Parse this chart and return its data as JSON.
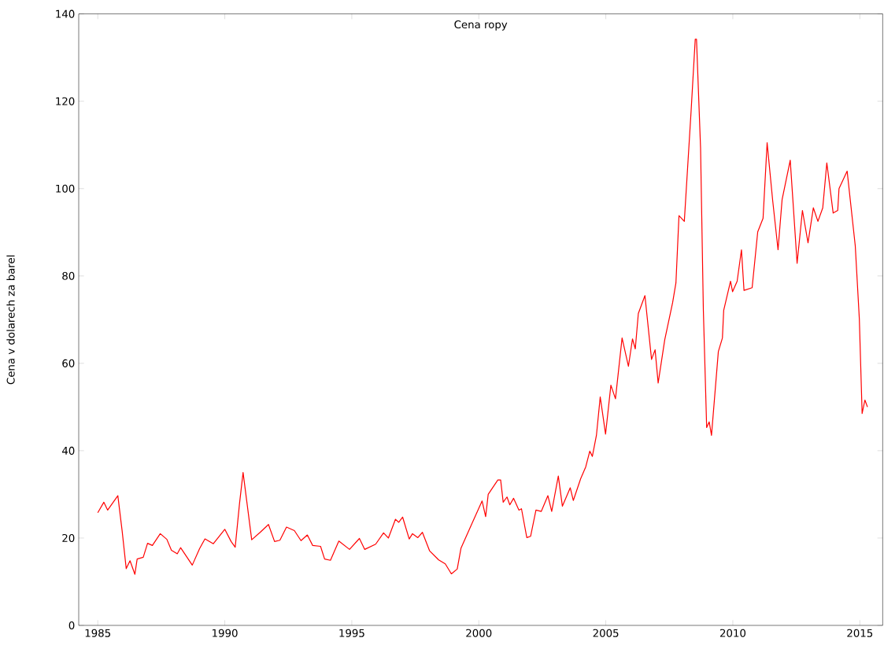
{
  "chart_data": {
    "type": "line",
    "title": "Cena ropy",
    "ylabel": "Cena v dolarech za barel",
    "xlim": [
      1984.25,
      2015.9
    ],
    "ylim": [
      0,
      140
    ],
    "xticks": [
      1985,
      1990,
      1995,
      2000,
      2005,
      2010,
      2015
    ],
    "yticks": [
      0,
      20,
      40,
      60,
      80,
      100,
      120,
      140
    ],
    "marker": "none",
    "line_style": "solid",
    "series": [
      {
        "color": "#ff0000",
        "x": [
          1985.0,
          1985.24,
          1985.39,
          1985.79,
          1985.96,
          1986.12,
          1986.27,
          1986.46,
          1986.55,
          1986.79,
          1986.96,
          1987.15,
          1987.46,
          1987.72,
          1987.9,
          1988.13,
          1988.26,
          1988.72,
          1989.01,
          1989.22,
          1989.55,
          1990.0,
          1990.25,
          1990.41,
          1990.58,
          1990.72,
          1990.87,
          1991.06,
          1991.39,
          1991.72,
          1991.96,
          1992.17,
          1992.43,
          1992.74,
          1993.0,
          1993.25,
          1993.46,
          1993.77,
          1993.93,
          1994.16,
          1994.49,
          1994.91,
          1995.3,
          1995.51,
          1995.94,
          1996.25,
          1996.44,
          1996.72,
          1996.85,
          1997.0,
          1997.26,
          1997.39,
          1997.6,
          1997.78,
          1998.06,
          1998.42,
          1998.68,
          1998.92,
          1999.15,
          1999.3,
          1999.72,
          2000.13,
          2000.27,
          2000.37,
          2000.75,
          2000.86,
          2000.96,
          2001.11,
          2001.22,
          2001.37,
          2001.58,
          2001.68,
          2001.89,
          2002.04,
          2002.25,
          2002.46,
          2002.72,
          2002.87,
          2003.13,
          2003.29,
          2003.6,
          2003.72,
          2004.01,
          2004.21,
          2004.37,
          2004.47,
          2004.63,
          2004.78,
          2004.99,
          2005.2,
          2005.38,
          2005.64,
          2005.89,
          2006.05,
          2006.16,
          2006.28,
          2006.54,
          2006.8,
          2006.94,
          2007.06,
          2007.32,
          2007.63,
          2007.76,
          2007.88,
          2008.09,
          2008.36,
          2008.52,
          2008.57,
          2008.73,
          2008.84,
          2008.97,
          2009.07,
          2009.16,
          2009.43,
          2009.59,
          2009.64,
          2009.91,
          2009.99,
          2010.17,
          2010.34,
          2010.44,
          2010.76,
          2010.98,
          2011.19,
          2011.35,
          2011.57,
          2011.78,
          2011.94,
          2012.26,
          2012.53,
          2012.74,
          2012.96,
          2013.17,
          2013.35,
          2013.54,
          2013.7,
          2013.95,
          2014.13,
          2014.18,
          2014.5,
          2014.82,
          2014.98,
          2015.09,
          2015.2,
          2015.3
        ],
        "values": [
          25.8,
          28.2,
          26.4,
          29.7,
          21.6,
          13.0,
          14.8,
          11.7,
          15.2,
          15.6,
          18.8,
          18.3,
          21.0,
          19.7,
          17.2,
          16.4,
          17.8,
          13.8,
          17.6,
          19.8,
          18.7,
          22.0,
          19.2,
          17.9,
          27.9,
          35.0,
          28.2,
          19.6,
          21.3,
          23.1,
          19.2,
          19.5,
          22.5,
          21.7,
          19.4,
          20.7,
          18.3,
          18.1,
          15.2,
          14.9,
          19.3,
          17.4,
          19.9,
          17.4,
          18.6,
          21.2,
          20.0,
          24.3,
          23.6,
          24.8,
          19.8,
          21.0,
          20.1,
          21.3,
          17.1,
          15.0,
          14.1,
          11.8,
          12.9,
          17.7,
          23.2,
          28.5,
          24.9,
          30.0,
          33.3,
          33.3,
          28.2,
          29.4,
          27.6,
          29.1,
          26.4,
          26.7,
          20.1,
          20.4,
          26.4,
          26.1,
          29.7,
          26.1,
          34.2,
          27.3,
          31.5,
          28.6,
          33.6,
          36.3,
          39.9,
          38.7,
          43.5,
          52.3,
          43.8,
          55.0,
          51.9,
          65.8,
          59.3,
          65.6,
          63.3,
          71.4,
          75.5,
          60.9,
          63.1,
          55.5,
          65.4,
          73.9,
          78.4,
          93.8,
          92.5,
          118.0,
          134.2,
          134.2,
          109.3,
          72.1,
          45.3,
          46.6,
          43.5,
          62.7,
          65.8,
          72.1,
          78.8,
          76.4,
          78.8,
          86.0,
          76.7,
          77.3,
          90.1,
          93.2,
          110.5,
          97.2,
          86.0,
          97.5,
          106.5,
          82.9,
          95.0,
          87.6,
          95.6,
          92.5,
          95.6,
          105.9,
          94.4,
          95.0,
          100.0,
          104.0,
          86.9,
          70.2,
          48.5,
          51.6,
          50.0
        ]
      }
    ]
  }
}
